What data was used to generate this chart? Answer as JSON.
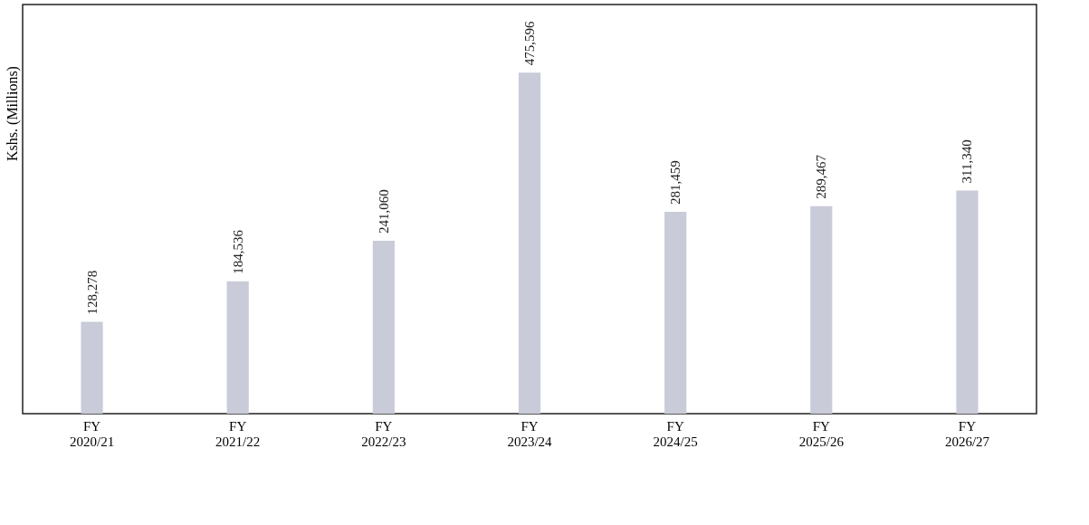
{
  "chart_data": {
    "type": "bar",
    "ylabel": "Kshs. (Millions)",
    "categories": [
      "FY 2020/21",
      "FY 2021/22",
      "FY 2022/23",
      "FY 2023/24",
      "FY 2024/25",
      "FY 2025/26",
      "FY 2026/27"
    ],
    "values": [
      128278,
      184536,
      241060,
      475596,
      281459,
      289467,
      311340
    ],
    "color": "#c9cbd9",
    "value_labels": [
      "128,278",
      "184,536",
      "241,060",
      "475,596",
      "281,459",
      "289,467",
      "311,340"
    ],
    "grid": false
  }
}
